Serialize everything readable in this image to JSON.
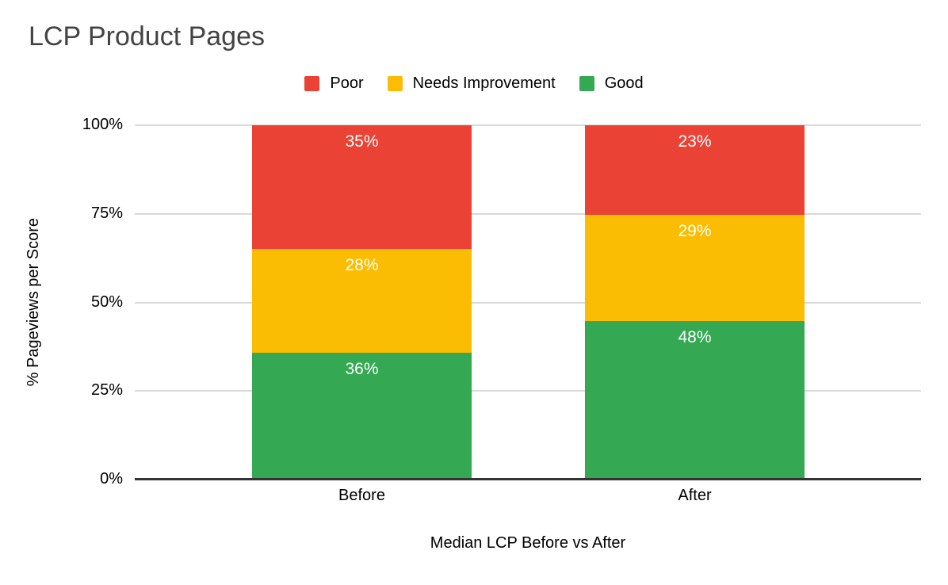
{
  "page": {
    "background": "#ffffff"
  },
  "chart": {
    "title": "LCP Product Pages",
    "title_color": "#434343"
  },
  "chart_data": {
    "type": "bar",
    "variant": "stacked-100-column",
    "title": "LCP Product Pages",
    "categories": [
      "Before",
      "After"
    ],
    "series": [
      {
        "name": "Poor",
        "color": "#ea4335",
        "values": [
          35,
          23
        ],
        "labels": [
          "35%",
          "23%"
        ]
      },
      {
        "name": "Needs Improvement",
        "color": "#fbbc04",
        "values": [
          28,
          29
        ],
        "labels": [
          "28%",
          "29%"
        ]
      },
      {
        "name": "Good",
        "color": "#34a853",
        "values": [
          36,
          48
        ],
        "labels": [
          "36%",
          "48%"
        ]
      }
    ],
    "xlabel": "Median LCP Before vs After",
    "ylabel": "% Pageviews per Score",
    "ylim": [
      0,
      100
    ],
    "yticks": [
      "0%",
      "25%",
      "50%",
      "75%",
      "100%"
    ],
    "grid": true,
    "gridline_color": "#d9d9d9",
    "axis_line_color": "#333333",
    "legend_position": "top",
    "value_label_color": "#ffffff"
  }
}
